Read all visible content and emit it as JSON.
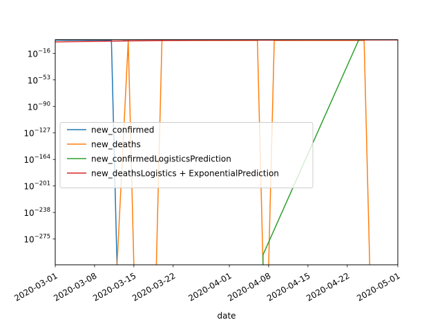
{
  "chart_data": {
    "type": "line",
    "title": "",
    "xlabel": "date",
    "ylabel": "",
    "yscale": "log",
    "grid": false,
    "legend_position": "center-left",
    "x_range": [
      "2020-03-01",
      "2020-05-01"
    ],
    "y_range_exponent": [
      -311,
      3
    ],
    "x_ticks": [
      {
        "label": "2020-03-01",
        "date": "2020-03-01"
      },
      {
        "label": "2020-03-08",
        "date": "2020-03-08"
      },
      {
        "label": "2020-03-15",
        "date": "2020-03-15"
      },
      {
        "label": "2020-03-22",
        "date": "2020-03-22"
      },
      {
        "label": "2020-04-01",
        "date": "2020-04-01"
      },
      {
        "label": "2020-04-08",
        "date": "2020-04-08"
      },
      {
        "label": "2020-04-15",
        "date": "2020-04-15"
      },
      {
        "label": "2020-04-22",
        "date": "2020-04-22"
      },
      {
        "label": "2020-05-01",
        "date": "2020-05-01"
      }
    ],
    "y_ticks": [
      {
        "base": "10",
        "exp": "−16",
        "value_exp": -16
      },
      {
        "base": "10",
        "exp": "−53",
        "value_exp": -53
      },
      {
        "base": "10",
        "exp": "−90",
        "value_exp": -90
      },
      {
        "base": "10",
        "exp": "−127",
        "value_exp": -127
      },
      {
        "base": "10",
        "exp": "−164",
        "value_exp": -164
      },
      {
        "base": "10",
        "exp": "−201",
        "value_exp": -201
      },
      {
        "base": "10",
        "exp": "−238",
        "value_exp": -238
      },
      {
        "base": "10",
        "exp": "−275",
        "value_exp": -275
      }
    ],
    "series": [
      {
        "name": "new_confirmed",
        "color": "#1f77b4",
        "points": [
          {
            "x": "2020-03-01",
            "y_exp": 2.5
          },
          {
            "x": "2020-03-03",
            "y_exp": 2.3
          },
          {
            "x": "2020-03-05",
            "y_exp": 2.4
          },
          {
            "x": "2020-03-07",
            "y_exp": 2.3
          },
          {
            "x": "2020-03-09",
            "y_exp": 2.4
          },
          {
            "x": "2020-03-11",
            "y_exp": 2.4
          },
          {
            "x": "2020-03-12",
            "y_exp": -312
          }
        ]
      },
      {
        "name": "new_deaths",
        "color": "#ff7f0e",
        "points": [
          {
            "x": "2020-03-12",
            "y_exp": -312
          },
          {
            "x": "2020-03-14",
            "y_exp": 2
          },
          {
            "x": "2020-03-15",
            "y_exp": -312
          },
          {
            "x": "2020-03-19",
            "y_exp": -312
          },
          {
            "x": "2020-03-20",
            "y_exp": 2
          },
          {
            "x": "2020-04-06",
            "y_exp": 2
          },
          {
            "x": "2020-04-07",
            "y_exp": -312
          },
          {
            "x": "2020-04-08",
            "y_exp": -312
          },
          {
            "x": "2020-04-09",
            "y_exp": 2
          },
          {
            "x": "2020-04-25",
            "y_exp": 2
          },
          {
            "x": "2020-04-26",
            "y_exp": -312
          }
        ]
      },
      {
        "name": "new_confirmedLogisticsPrediction",
        "color": "#2ca02c",
        "points": [
          {
            "x": "2020-04-07",
            "y_exp": -312
          },
          {
            "x": "2020-04-07",
            "y_exp": -297
          },
          {
            "x": "2020-04-24",
            "y_exp": 2
          },
          {
            "x": "2020-04-25",
            "y_exp": 4
          },
          {
            "x": "2020-05-01",
            "y_exp": 4
          }
        ]
      },
      {
        "name": "new_deathsLogistics + ExponentialPrediction",
        "color": "#d62728",
        "points": [
          {
            "x": "2020-03-01",
            "y_exp": 0
          },
          {
            "x": "2020-03-06",
            "y_exp": 0.5
          },
          {
            "x": "2020-03-11",
            "y_exp": 1
          },
          {
            "x": "2020-03-16",
            "y_exp": 1.5
          },
          {
            "x": "2020-03-21",
            "y_exp": 2
          },
          {
            "x": "2020-03-26",
            "y_exp": 2.2
          },
          {
            "x": "2020-04-01",
            "y_exp": 2.4
          },
          {
            "x": "2020-04-06",
            "y_exp": 2.5
          },
          {
            "x": "2020-04-11",
            "y_exp": 2.5
          },
          {
            "x": "2020-04-16",
            "y_exp": 2.6
          },
          {
            "x": "2020-04-21",
            "y_exp": 2.6
          },
          {
            "x": "2020-04-26",
            "y_exp": 2.7
          },
          {
            "x": "2020-05-01",
            "y_exp": 2.7
          }
        ]
      },
      {
        "name": "",
        "color": "#1f77b4",
        "points": [
          {
            "x": "2020-03-13",
            "y_exp": 3
          },
          {
            "x": "2020-03-15",
            "y_exp": 3.5
          },
          {
            "x": "2020-03-18",
            "y_exp": 4
          },
          {
            "x": "2020-03-21",
            "y_exp": 5
          },
          {
            "x": "2020-03-24",
            "y_exp": 4
          },
          {
            "x": "2020-03-27",
            "y_exp": 4.5
          },
          {
            "x": "2020-03-30",
            "y_exp": 4
          },
          {
            "x": "2020-04-02",
            "y_exp": 5
          },
          {
            "x": "2020-04-05",
            "y_exp": 4.5
          },
          {
            "x": "2020-04-08",
            "y_exp": 4
          },
          {
            "x": "2020-04-11",
            "y_exp": 6
          },
          {
            "x": "2020-04-14",
            "y_exp": 4
          },
          {
            "x": "2020-04-17",
            "y_exp": 4.5
          },
          {
            "x": "2020-04-20",
            "y_exp": 4
          },
          {
            "x": "2020-04-23",
            "y_exp": 4.5
          },
          {
            "x": "2020-04-26",
            "y_exp": 4
          },
          {
            "x": "2020-04-29",
            "y_exp": 4
          },
          {
            "x": "2020-05-01",
            "y_exp": 4
          }
        ]
      }
    ]
  }
}
